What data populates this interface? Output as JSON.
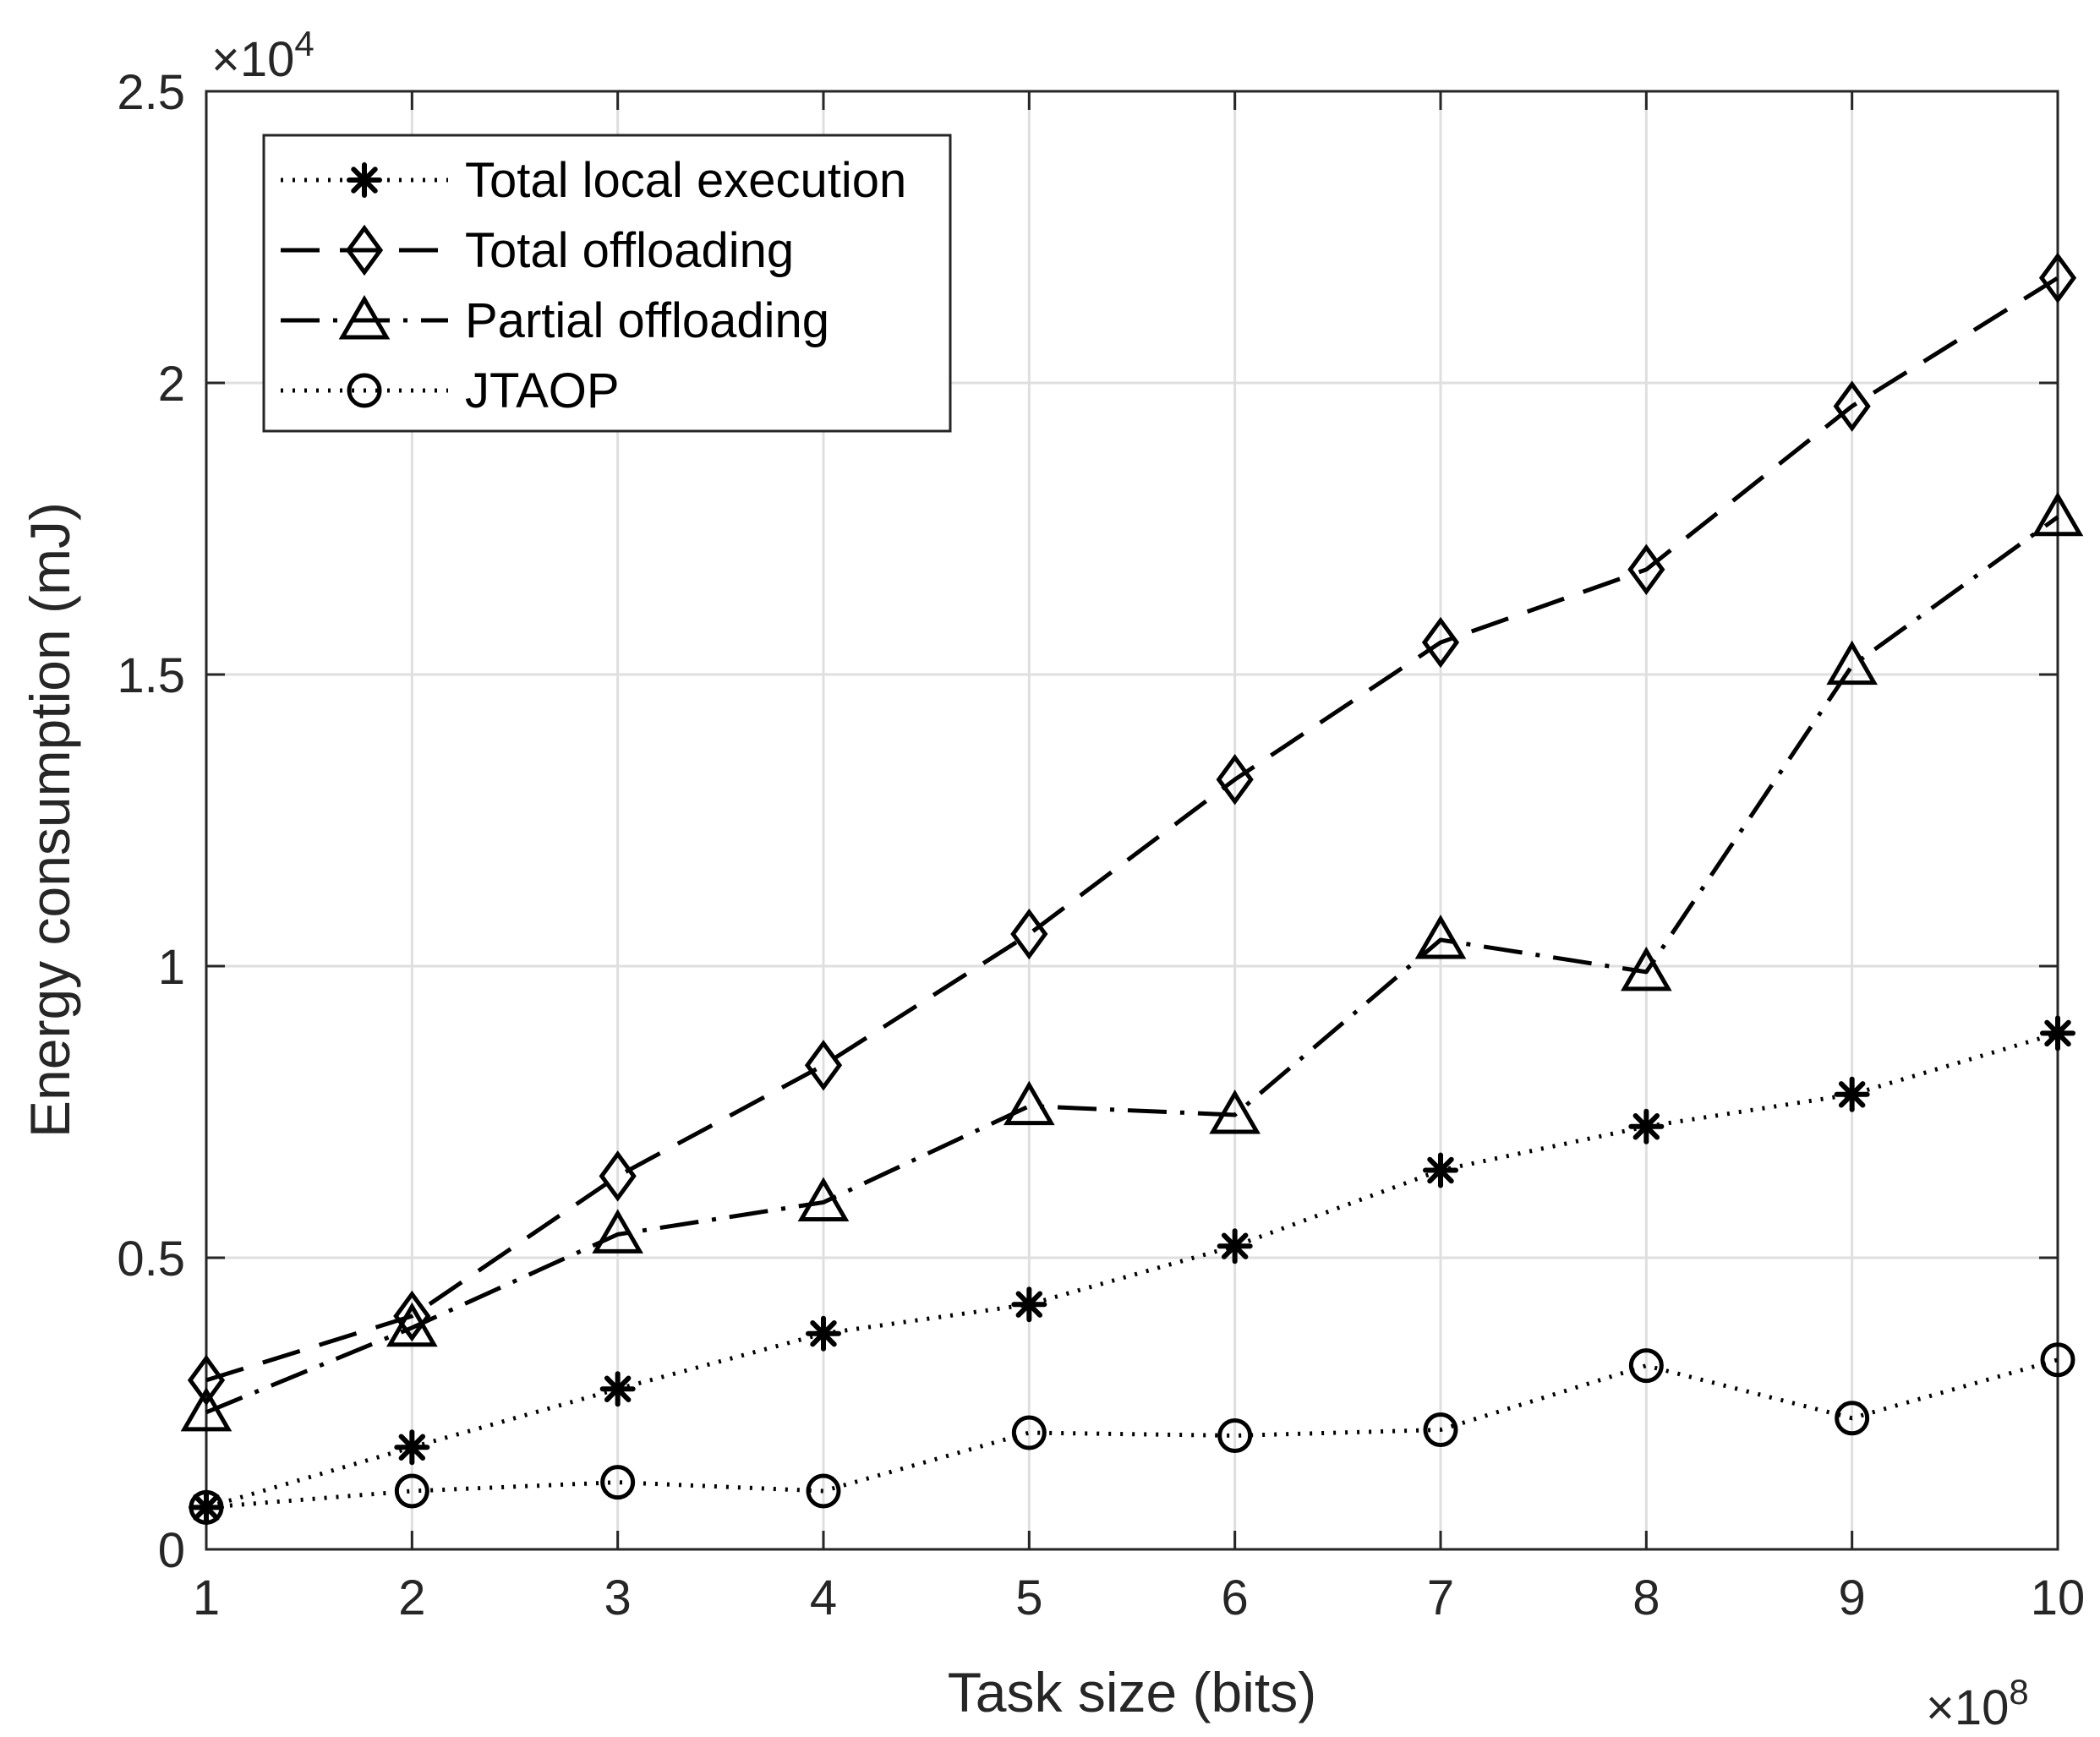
{
  "chart_data": {
    "type": "line",
    "title": "",
    "xlabel": "Task size (bits)",
    "ylabel": "Energy consumption (mJ)",
    "x_multiplier": "×10",
    "x_multiplier_exp": "8",
    "y_multiplier": "×10",
    "y_multiplier_exp": "4",
    "x": [
      1,
      2,
      3,
      4,
      5,
      6,
      7,
      8,
      9,
      10
    ],
    "xlim": [
      1,
      10
    ],
    "ylim": [
      0,
      2.5
    ],
    "x_ticks": [
      "1",
      "2",
      "3",
      "4",
      "5",
      "6",
      "7",
      "8",
      "9",
      "10"
    ],
    "y_ticks": [
      {
        "value": 0,
        "label": "0"
      },
      {
        "value": 0.5,
        "label": "0.5"
      },
      {
        "value": 1,
        "label": "1"
      },
      {
        "value": 1.5,
        "label": "1.5"
      },
      {
        "value": 2,
        "label": "2"
      },
      {
        "value": 2.5,
        "label": "2.5"
      }
    ],
    "grid": true,
    "legend_position": "top-left",
    "series": [
      {
        "name": "Total local execution",
        "marker": "asterisk",
        "line": "dotted",
        "values": [
          0.072,
          0.175,
          0.275,
          0.37,
          0.42,
          0.52,
          0.65,
          0.725,
          0.78,
          0.885
        ]
      },
      {
        "name": "Total offloading",
        "marker": "diamond",
        "line": "dashed",
        "values": [
          0.29,
          0.4,
          0.64,
          0.83,
          1.055,
          1.32,
          1.555,
          1.68,
          1.96,
          2.18
        ]
      },
      {
        "name": "Partial offloading",
        "marker": "triangle",
        "line": "dashdot",
        "values": [
          0.235,
          0.38,
          0.54,
          0.595,
          0.76,
          0.745,
          1.045,
          0.99,
          1.515,
          1.77
        ]
      },
      {
        "name": "JTAOP",
        "marker": "circle",
        "line": "dotted",
        "values": [
          0.072,
          0.1,
          0.115,
          0.1,
          0.2,
          0.195,
          0.205,
          0.315,
          0.225,
          0.325
        ]
      }
    ]
  }
}
